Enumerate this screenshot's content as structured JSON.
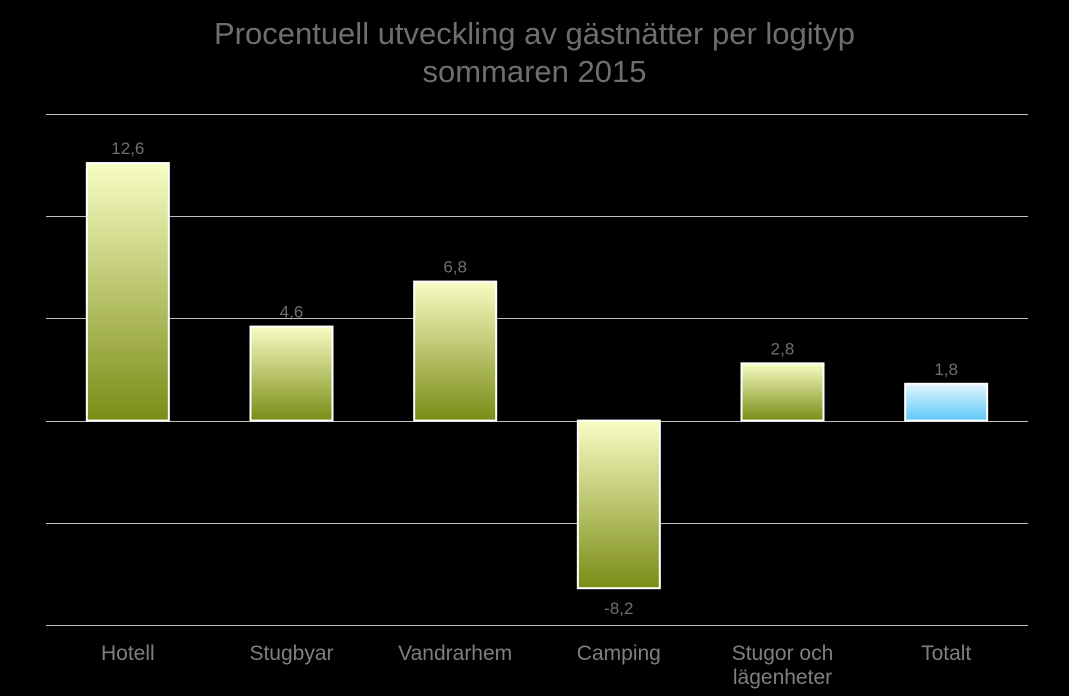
{
  "chart_data": {
    "type": "bar",
    "title_line1": "Procentuell utveckling av gästnätter per logityp",
    "title_line2": "sommaren 2015",
    "xlabel": "",
    "ylabel": "",
    "categories": [
      "Hotell",
      "Stugbyar",
      "Vandrarhem",
      "Camping",
      "Stugor och lägenheter",
      "Totalt"
    ],
    "category_lines": [
      [
        "Hotell"
      ],
      [
        "Stugbyar"
      ],
      [
        "Vandrarhem"
      ],
      [
        "Camping"
      ],
      [
        "Stugor och",
        "lägenheter"
      ],
      [
        "Totalt"
      ]
    ],
    "values": [
      12.6,
      4.6,
      6.8,
      -8.2,
      2.8,
      1.8
    ],
    "value_labels": [
      "12,6",
      "4,6",
      "6,8",
      "-8,2",
      "2,8",
      "1,8"
    ],
    "ylim": [
      -10,
      15
    ],
    "gridlines": [
      -10,
      -5,
      0,
      5,
      10,
      15
    ],
    "grid": true,
    "show_y_tick_labels": false,
    "colors": {
      "background": "#000000",
      "bar_top": "#f8fdc4",
      "bar_bottom": "#7b8c16",
      "total_top": "#e4f6ff",
      "total_bottom": "#5cc8f5",
      "bar_border": "#ffffff",
      "gridline": "#bfbfbf",
      "text": "#6e6e6e",
      "category_text": "#7f7f7f"
    },
    "highlight_category": "Totalt"
  }
}
